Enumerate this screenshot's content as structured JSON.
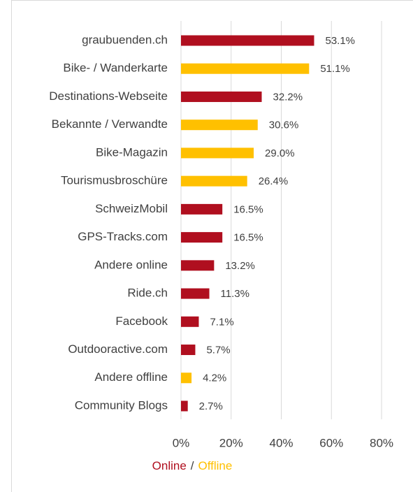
{
  "chart_data": {
    "type": "bar",
    "orientation": "horizontal",
    "categories": [
      "graubuenden.ch",
      "Bike- / Wanderkarte",
      "Destinations-Webseite",
      "Bekannte / Verwandte",
      "Bike-Magazin",
      "Tourismusbroschüre",
      "SchweizMobil",
      "GPS-Tracks.com",
      "Andere online",
      "Ride.ch",
      "Facebook",
      "Outdooractive.com",
      "Andere offline",
      "Community Blogs"
    ],
    "series": [
      {
        "name": "Online",
        "color": "#b00f1f",
        "values": [
          53.1,
          null,
          32.2,
          null,
          null,
          null,
          16.5,
          16.5,
          13.2,
          11.3,
          7.1,
          5.7,
          null,
          2.7
        ],
        "value_labels": [
          "53.1%",
          null,
          "32.2%",
          null,
          null,
          null,
          "16.5%",
          "16.5%",
          "13.2%",
          "11.3%",
          "7.1%",
          "5.7%",
          null,
          "2.7%"
        ]
      },
      {
        "name": "Offline",
        "color": "#ffc000",
        "values": [
          null,
          51.1,
          null,
          30.6,
          29.0,
          26.4,
          null,
          null,
          null,
          null,
          null,
          null,
          4.2,
          null
        ],
        "value_labels": [
          null,
          "51.1%",
          null,
          "30.6%",
          "29.0%",
          "26.4%",
          null,
          null,
          null,
          null,
          null,
          null,
          "4.2%",
          null
        ]
      }
    ],
    "legend_separator": "/",
    "xlim": [
      0,
      80
    ],
    "xticks": [
      {
        "value": 0,
        "label": "0%"
      },
      {
        "value": 20,
        "label": "20%"
      },
      {
        "value": 40,
        "label": "40%"
      },
      {
        "value": 60,
        "label": "60%"
      },
      {
        "value": 80,
        "label": "80%"
      }
    ],
    "grid": true
  }
}
